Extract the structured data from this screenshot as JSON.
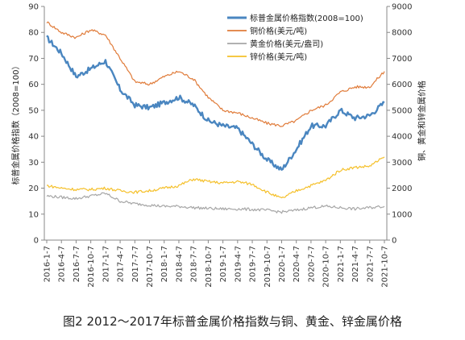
{
  "caption": "图2 2012～2017年标普金属价格指数与铜、黄金、锌金属价格",
  "chart_data": {
    "type": "line",
    "x": [
      "2016-1-7",
      "2016-4-7",
      "2016-7-7",
      "2016-10-7",
      "2017-1-7",
      "2017-4-7",
      "2017-7-7",
      "2017-10-7",
      "2018-1-7",
      "2018-4-7",
      "2018-7-7",
      "2018-10-7",
      "2019-1-7",
      "2019-4-7",
      "2019-7-7",
      "2019-10-7",
      "2020-1-7",
      "2020-4-7",
      "2020-7-7",
      "2020-10-7",
      "2021-1-7",
      "2021-4-7",
      "2021-7-7",
      "2021-10-7"
    ],
    "left_axis": {
      "label": "标普金属价格指数（2008=100）",
      "range": [
        0,
        90
      ],
      "ticks": [
        0,
        10,
        20,
        30,
        40,
        50,
        60,
        70,
        80,
        90
      ]
    },
    "right_axis": {
      "label": "铜、黄金和锌金属价格",
      "range": [
        0,
        9000
      ],
      "ticks": [
        0,
        1000,
        2000,
        3000,
        4000,
        5000,
        6000,
        7000,
        8000,
        9000
      ]
    },
    "legend_position": "top-right",
    "grid": false,
    "series": [
      {
        "name": "标普金属价格指数(2008=100)",
        "axis": "left",
        "color": "#4a86c0",
        "width": 2.4,
        "values": [
          78,
          72,
          63,
          66,
          69,
          58,
          52,
          51,
          53,
          55,
          52,
          46,
          44,
          43,
          37,
          31,
          27,
          35,
          44,
          44,
          50,
          47,
          48,
          53
        ]
      },
      {
        "name": "铜价格(美元/吨)",
        "axis": "right",
        "color": "#e07b39",
        "width": 1.2,
        "values": [
          8400,
          8000,
          7800,
          8100,
          7900,
          7000,
          6100,
          6000,
          6300,
          6500,
          6200,
          5500,
          5000,
          4900,
          4700,
          4500,
          4400,
          4600,
          5000,
          5200,
          5700,
          5900,
          5900,
          6500
        ]
      },
      {
        "name": "黄金价格(美元/盎司)",
        "axis": "right",
        "color": "#a6a6a6",
        "width": 1.2,
        "values": [
          1700,
          1650,
          1600,
          1700,
          1800,
          1500,
          1400,
          1350,
          1300,
          1300,
          1250,
          1220,
          1200,
          1200,
          1180,
          1150,
          1080,
          1150,
          1250,
          1300,
          1250,
          1200,
          1250,
          1300
        ]
      },
      {
        "name": "锌价格(美元/吨)",
        "axis": "right",
        "color": "#f5c02a",
        "width": 1.2,
        "values": [
          2100,
          2000,
          1950,
          1950,
          2000,
          1900,
          1850,
          1900,
          2000,
          2100,
          2350,
          2250,
          2200,
          2250,
          2150,
          1850,
          1600,
          1900,
          2100,
          2300,
          2700,
          2800,
          2850,
          3200
        ]
      }
    ]
  }
}
